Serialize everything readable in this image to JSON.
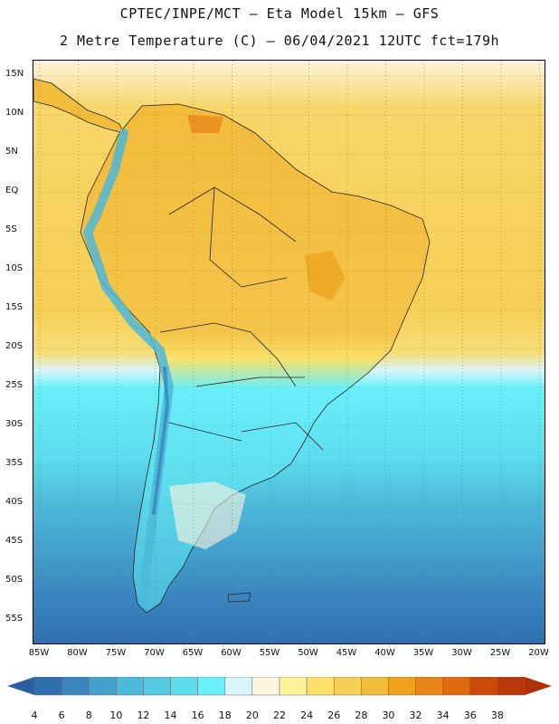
{
  "title": {
    "line1": "CPTEC/INPE/MCT –  Eta Model 15km – GFS",
    "line2": "2 Metre Temperature (C) – 06/04/2021 12UTC fct=179h"
  },
  "axes": {
    "lat_labels": [
      "15N",
      "10N",
      "5N",
      "EQ",
      "5S",
      "10S",
      "15S",
      "20S",
      "25S",
      "30S",
      "35S",
      "40S",
      "45S",
      "50S",
      "55S"
    ],
    "lon_labels": [
      "85W",
      "80W",
      "75W",
      "70W",
      "65W",
      "60W",
      "55W",
      "50W",
      "45W",
      "40W",
      "35W",
      "30W",
      "25W",
      "20W"
    ]
  },
  "colorbar": {
    "labels": [
      "4",
      "6",
      "8",
      "10",
      "12",
      "14",
      "16",
      "18",
      "20",
      "22",
      "24",
      "26",
      "28",
      "30",
      "32",
      "34",
      "36",
      "38"
    ],
    "colors": [
      "#2f6fb0",
      "#3a84bf",
      "#44a0cc",
      "#4db8d8",
      "#55cbe2",
      "#5ddcec",
      "#6af0fa",
      "#d8f5fb",
      "#fdf5e0",
      "#fdf29a",
      "#fbe06a",
      "#f6cf55",
      "#f2bc3c",
      "#eea21c",
      "#e8861a",
      "#e06a10",
      "#cc4a08",
      "#b83808"
    ],
    "low_color": "#2a5fa0",
    "high_color": "#b03008"
  },
  "chart_data": {
    "type": "heatmap",
    "title": "CPTEC/INPE/MCT – Eta Model 15km – GFS",
    "subtitle": "2 Metre Temperature (C) – 06/04/2021 12UTC fct=179h",
    "variable": "2 Metre Temperature",
    "units": "C",
    "lon_range": [
      -86,
      -19
    ],
    "lat_range": [
      -58,
      17
    ],
    "color_scale_min": 4,
    "color_scale_max": 38,
    "color_scale_step": 2
  }
}
